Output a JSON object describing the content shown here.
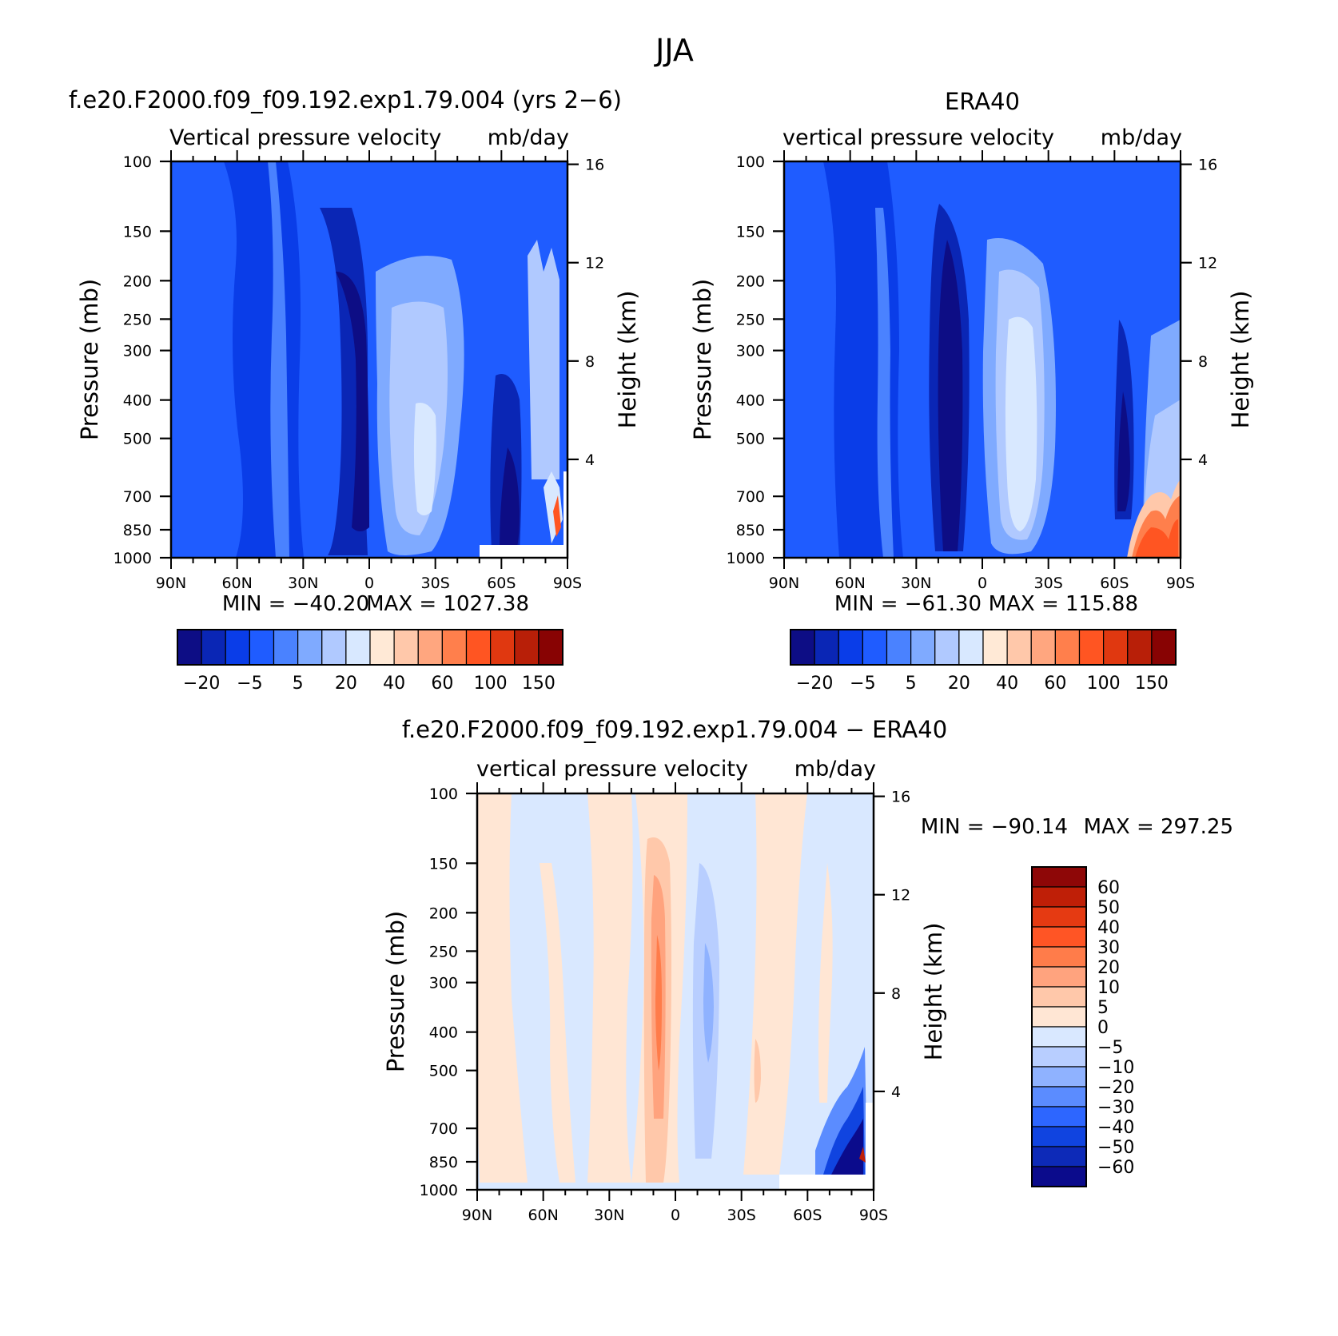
{
  "figure": {
    "season": "JJA"
  },
  "colors": {
    "panel": [
      "#0d0d85",
      "#0a26b5",
      "#0a3de8",
      "#1f5cff",
      "#4a82ff",
      "#7faaff",
      "#b0c9ff",
      "#d8e8ff",
      "#ffe9d6",
      "#ffc8aa",
      "#ffa67f",
      "#ff7f4c",
      "#ff5522",
      "#e03810",
      "#b81f08",
      "#880303"
    ],
    "diff": [
      "#0b0b8c",
      "#0d2ab8",
      "#1044e0",
      "#2d66ff",
      "#5b8cff",
      "#8fb2ff",
      "#b8ceff",
      "#d9e8ff",
      "#ffe6d4",
      "#ffc8aa",
      "#ffa37e",
      "#ff7c4a",
      "#ff5525",
      "#e53a12",
      "#bf1f07",
      "#8e0707"
    ]
  },
  "chart_data": [
    {
      "type": "heatmap",
      "title": "f.e20.F2000.f09_f09.192.exp1.79.004 (yrs 2−6)",
      "subtitle_left": "Vertical pressure velocity",
      "subtitle_right": "mb/day",
      "xlabel": "",
      "ylabel": "Pressure (mb)",
      "y2label": "Height (km)",
      "x_ticks": [
        "90N",
        "60N",
        "30N",
        "0",
        "30S",
        "60S",
        "90S"
      ],
      "y_ticks": [
        "100",
        "150",
        "200",
        "250",
        "300",
        "400",
        "500",
        "700",
        "850",
        "1000"
      ],
      "y2_ticks": [
        "16",
        "12",
        "8",
        "4"
      ],
      "ylim": [
        1000,
        100
      ],
      "y_scale": "log",
      "xlim": [
        90,
        -90
      ],
      "min_label": "MIN = −40.20",
      "max_label": "MAX = 1027.38",
      "colorbar": {
        "orientation": "horizontal",
        "labels": [
          "−20",
          "−5",
          "5",
          "20",
          "40",
          "60",
          "100",
          "150"
        ]
      },
      "features": [
        {
          "lat": 12,
          "p": 450,
          "value": -35
        },
        {
          "lat": 43,
          "p": 400,
          "value": -12
        },
        {
          "lat": -20,
          "p": 500,
          "value": 28
        },
        {
          "lat": -60,
          "p": 600,
          "value": -22
        },
        {
          "lat": -85,
          "p": 900,
          "value": 150
        }
      ]
    },
    {
      "type": "heatmap",
      "title": "ERA40",
      "subtitle_left": "vertical pressure velocity",
      "subtitle_right": "mb/day",
      "xlabel": "",
      "ylabel": "Pressure (mb)",
      "y2label": "Height (km)",
      "x_ticks": [
        "90N",
        "60N",
        "30N",
        "0",
        "30S",
        "60S",
        "90S"
      ],
      "y_ticks": [
        "100",
        "150",
        "200",
        "250",
        "300",
        "400",
        "500",
        "700",
        "850",
        "1000"
      ],
      "y2_ticks": [
        "16",
        "12",
        "8",
        "4"
      ],
      "ylim": [
        1000,
        100
      ],
      "y_scale": "log",
      "xlim": [
        90,
        -90
      ],
      "min_label": "MIN = −61.30",
      "max_label": "MAX = 115.88",
      "colorbar": {
        "orientation": "horizontal",
        "labels": [
          "−20",
          "−5",
          "5",
          "20",
          "40",
          "60",
          "100",
          "150"
        ]
      },
      "features": [
        {
          "lat": 12,
          "p": 450,
          "value": -45
        },
        {
          "lat": -20,
          "p": 450,
          "value": 35
        },
        {
          "lat": -65,
          "p": 550,
          "value": -25
        },
        {
          "lat": -82,
          "p": 900,
          "value": 100
        }
      ]
    },
    {
      "type": "heatmap",
      "title": "f.e20.F2000.f09_f09.192.exp1.79.004 − ERA40",
      "subtitle_left": "vertical pressure velocity",
      "subtitle_right": "mb/day",
      "xlabel": "",
      "ylabel": "Pressure (mb)",
      "y2label": "Height (km)",
      "x_ticks": [
        "90N",
        "60N",
        "30N",
        "0",
        "30S",
        "60S",
        "90S"
      ],
      "y_ticks": [
        "100",
        "150",
        "200",
        "250",
        "300",
        "400",
        "500",
        "700",
        "850",
        "1000"
      ],
      "y2_ticks": [
        "16",
        "12",
        "8",
        "4"
      ],
      "ylim": [
        1000,
        100
      ],
      "y_scale": "log",
      "xlim": [
        90,
        -90
      ],
      "min_label": "MIN = −90.14",
      "max_label": "MAX = 297.25",
      "colorbar": {
        "orientation": "vertical",
        "labels": [
          "60",
          "50",
          "40",
          "30",
          "20",
          "10",
          "5",
          "0",
          "−5",
          "−10",
          "−20",
          "−30",
          "−40",
          "−50",
          "−60"
        ]
      },
      "features": [
        {
          "lat": 5,
          "p": 400,
          "value": 22
        },
        {
          "lat": -12,
          "p": 400,
          "value": -12
        },
        {
          "lat": -85,
          "p": 900,
          "value": -60
        }
      ]
    }
  ]
}
